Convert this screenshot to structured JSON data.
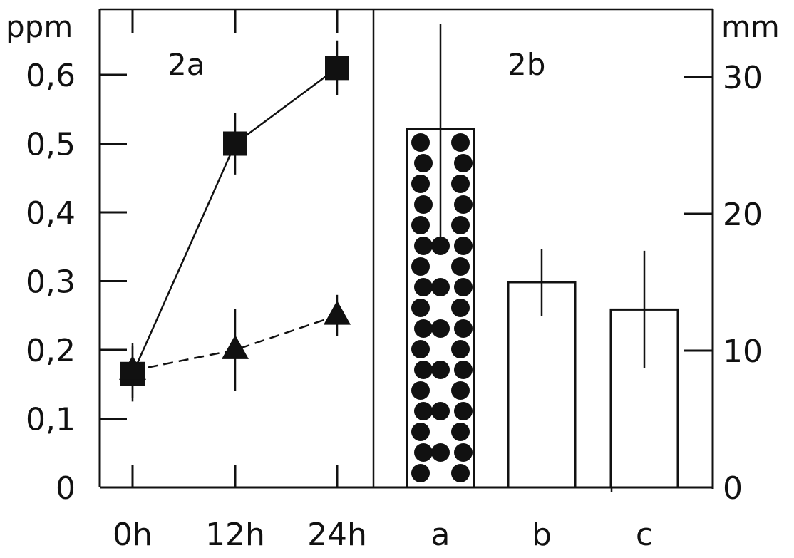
{
  "colors": {
    "ink": "#111111",
    "background": "#ffffff"
  },
  "chart_data": [
    {
      "panel": "2a",
      "type": "line",
      "ylabel": "ppm",
      "ylim": [
        0,
        0.7
      ],
      "yticks": [
        "0",
        "0,1",
        "0,2",
        "0,3",
        "0,4",
        "0,5",
        "0,6"
      ],
      "categories": [
        "0h",
        "12h",
        "24h"
      ],
      "series": [
        {
          "marker": "square",
          "line_style": "solid",
          "values": [
            0.165,
            0.5,
            0.61
          ],
          "error": [
            0.04,
            0.045,
            0.04
          ]
        },
        {
          "marker": "triangle",
          "line_style": "dashed",
          "values": [
            0.17,
            0.2,
            0.25
          ],
          "error": [
            0.04,
            0.06,
            0.03
          ]
        }
      ]
    },
    {
      "panel": "2b",
      "type": "bar",
      "ylabel": "mm",
      "ylim": [
        0,
        35
      ],
      "yticks": [
        "0",
        "10",
        "20",
        "30"
      ],
      "categories": [
        "a",
        "b",
        "c"
      ],
      "values": [
        26.2,
        15,
        13
      ],
      "error_bars": [
        [
          18.2,
          33.9
        ],
        [
          12.5,
          17.4
        ],
        [
          8.7,
          17.3
        ]
      ],
      "fill": [
        "dotted",
        "none",
        "none"
      ]
    }
  ]
}
